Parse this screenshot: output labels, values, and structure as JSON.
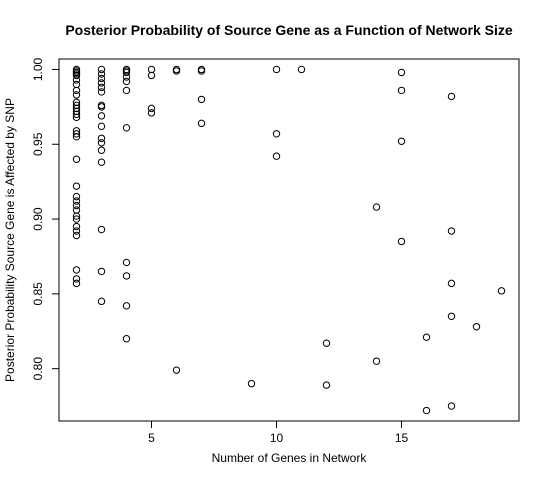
{
  "chart_data": {
    "type": "scatter",
    "title": "Posterior Probability of Source Gene as a Function of Network Size",
    "xlabel": "Number of Genes in Network",
    "ylabel": "Posterior Probability Source Gene is Affected by SNP",
    "xlim": [
      1.3,
      19.7
    ],
    "ylim": [
      0.765,
      1.007
    ],
    "xticks": [
      5,
      10,
      15
    ],
    "yticks": [
      0.8,
      0.85,
      0.9,
      0.95,
      1.0
    ],
    "ytick_labels": [
      "0.80",
      "0.85",
      "0.90",
      "0.95",
      "1.00"
    ],
    "marker": "open-circle",
    "grid": false,
    "legend": "none",
    "points": [
      [
        2,
        1.0
      ],
      [
        2,
        0.999
      ],
      [
        2,
        0.998
      ],
      [
        2,
        0.997
      ],
      [
        2,
        0.996
      ],
      [
        2,
        0.993
      ],
      [
        2,
        0.99
      ],
      [
        2,
        0.986
      ],
      [
        2,
        0.983
      ],
      [
        2,
        0.978
      ],
      [
        2,
        0.976
      ],
      [
        2,
        0.974
      ],
      [
        2,
        0.972
      ],
      [
        2,
        0.97
      ],
      [
        2,
        0.968
      ],
      [
        2,
        0.959
      ],
      [
        2,
        0.957
      ],
      [
        2,
        0.955
      ],
      [
        2,
        0.94
      ],
      [
        2,
        0.922
      ],
      [
        2,
        0.915
      ],
      [
        2,
        0.912
      ],
      [
        2,
        0.909
      ],
      [
        2,
        0.906
      ],
      [
        2,
        0.902
      ],
      [
        2,
        0.9
      ],
      [
        2,
        0.895
      ],
      [
        2,
        0.892
      ],
      [
        2,
        0.889
      ],
      [
        2,
        0.866
      ],
      [
        2,
        0.86
      ],
      [
        2,
        0.857
      ],
      [
        3,
        1.0
      ],
      [
        3,
        0.997
      ],
      [
        3,
        0.994
      ],
      [
        3,
        0.991
      ],
      [
        3,
        0.988
      ],
      [
        3,
        0.985
      ],
      [
        3,
        0.976
      ],
      [
        3,
        0.975
      ],
      [
        3,
        0.969
      ],
      [
        3,
        0.962
      ],
      [
        3,
        0.954
      ],
      [
        3,
        0.951
      ],
      [
        3,
        0.946
      ],
      [
        3,
        0.938
      ],
      [
        3,
        0.893
      ],
      [
        3,
        0.865
      ],
      [
        3,
        0.845
      ],
      [
        4,
        1.0
      ],
      [
        4,
        0.999
      ],
      [
        4,
        0.998
      ],
      [
        4,
        0.995
      ],
      [
        4,
        0.992
      ],
      [
        4,
        0.986
      ],
      [
        4,
        0.961
      ],
      [
        4,
        0.871
      ],
      [
        4,
        0.862
      ],
      [
        4,
        0.842
      ],
      [
        4,
        0.82
      ],
      [
        5,
        1.0
      ],
      [
        5,
        0.996
      ],
      [
        5,
        0.974
      ],
      [
        5,
        0.971
      ],
      [
        6,
        1.0
      ],
      [
        6,
        0.999
      ],
      [
        6,
        0.799
      ],
      [
        7,
        1.0
      ],
      [
        7,
        0.999
      ],
      [
        7,
        0.98
      ],
      [
        7,
        0.964
      ],
      [
        9,
        0.79
      ],
      [
        10,
        1.0
      ],
      [
        10,
        0.957
      ],
      [
        10,
        0.942
      ],
      [
        11,
        1.0
      ],
      [
        12,
        0.817
      ],
      [
        12,
        0.789
      ],
      [
        14,
        0.908
      ],
      [
        14,
        0.805
      ],
      [
        15,
        0.998
      ],
      [
        15,
        0.986
      ],
      [
        15,
        0.952
      ],
      [
        15,
        0.885
      ],
      [
        16,
        0.821
      ],
      [
        16,
        0.772
      ],
      [
        17,
        0.982
      ],
      [
        17,
        0.892
      ],
      [
        17,
        0.857
      ],
      [
        17,
        0.835
      ],
      [
        17,
        0.775
      ],
      [
        18,
        0.828
      ],
      [
        19,
        0.852
      ]
    ]
  }
}
